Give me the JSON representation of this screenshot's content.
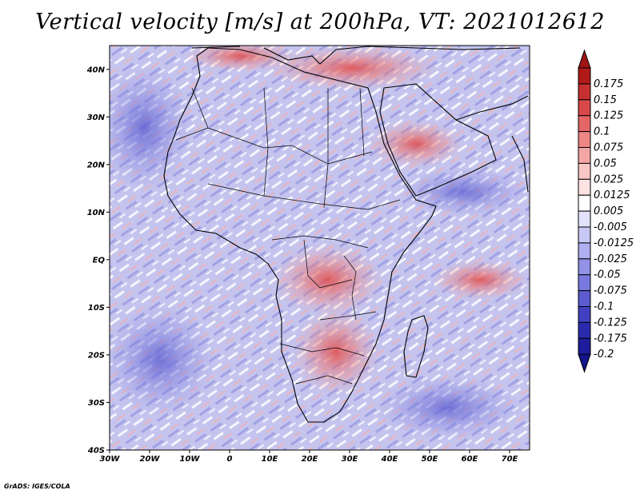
{
  "title": "Vertical velocity [m/s] at 200hPa, VT: 2021012612",
  "credit": "GrADS: IGES/COLA",
  "map": {
    "lon_range": [
      -30,
      75
    ],
    "lat_range": [
      -40,
      45
    ],
    "lat_ticks": [
      {
        "value": 40,
        "label": "40N"
      },
      {
        "value": 30,
        "label": "30N"
      },
      {
        "value": 20,
        "label": "20N"
      },
      {
        "value": 10,
        "label": "10N"
      },
      {
        "value": 0,
        "label": "EQ"
      },
      {
        "value": -10,
        "label": "10S"
      },
      {
        "value": -20,
        "label": "20S"
      },
      {
        "value": -30,
        "label": "30S"
      },
      {
        "value": -40,
        "label": "40S"
      }
    ],
    "lon_ticks": [
      {
        "value": -30,
        "label": "30W"
      },
      {
        "value": -20,
        "label": "20W"
      },
      {
        "value": -10,
        "label": "10W"
      },
      {
        "value": 0,
        "label": "0"
      },
      {
        "value": 10,
        "label": "10E"
      },
      {
        "value": 20,
        "label": "20E"
      },
      {
        "value": 30,
        "label": "30E"
      },
      {
        "value": 40,
        "label": "40E"
      },
      {
        "value": 50,
        "label": "50E"
      },
      {
        "value": 60,
        "label": "60E"
      },
      {
        "value": 70,
        "label": "70E"
      }
    ]
  },
  "colorbar": {
    "levels": [
      {
        "label": "0.175",
        "color": "#b21a1a"
      },
      {
        "label": "0.15",
        "color": "#c63030"
      },
      {
        "label": "0.125",
        "color": "#d94848"
      },
      {
        "label": "0.1",
        "color": "#e56666"
      },
      {
        "label": "0.075",
        "color": "#ee8686"
      },
      {
        "label": "0.05",
        "color": "#f4a6a6"
      },
      {
        "label": "0.025",
        "color": "#f9c6c6"
      },
      {
        "label": "0.0125",
        "color": "#fce2e2"
      },
      {
        "label": "0.005",
        "color": "#ffffff"
      },
      {
        "label": "-0.005",
        "color": "#e2e2fc"
      },
      {
        "label": "-0.0125",
        "color": "#c8c8f6"
      },
      {
        "label": "-0.025",
        "color": "#aeaef0"
      },
      {
        "label": "-0.05",
        "color": "#9292e8"
      },
      {
        "label": "-0.075",
        "color": "#7878de"
      },
      {
        "label": "-0.1",
        "color": "#5c5cd0"
      },
      {
        "label": "-0.125",
        "color": "#4040c0"
      },
      {
        "label": "-0.175",
        "color": "#2a2aae"
      },
      {
        "label": "-0.2",
        "color": "#1c1c9c"
      }
    ],
    "top_color": "#a01414",
    "bottom_color": "#14148c"
  }
}
